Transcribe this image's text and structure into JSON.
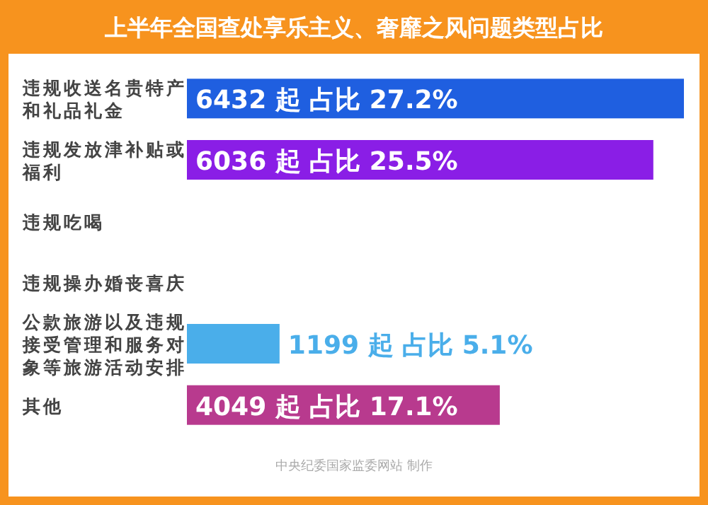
{
  "chart_data": {
    "type": "bar",
    "orientation": "horizontal",
    "title": "上半年全国查处享乐主义、奢靡之风问题类型占比",
    "categories": [
      "违规收送名贵特产和礼品礼金",
      "违规发放津补贴或福利",
      "违规吃喝",
      "违规操办婚丧喜庆",
      "公款旅游以及违规接受管理和服务对象等旅游活动安排",
      "其他"
    ],
    "values": [
      6432,
      6036,
      null,
      null,
      1199,
      4049
    ],
    "colors": [
      "#1f5fe0",
      "#8a1ee6",
      null,
      null,
      "#4aaeea",
      "#b83a8e"
    ],
    "value_labels": [
      "6432 起  占比 27.2%",
      "6036 起  占比 25.5%",
      null,
      null,
      "1199 起  占比 5.1%",
      "4049 起  占比 17.1%"
    ],
    "annotations": [
      "中央纪委国家监委网站 制作"
    ]
  }
}
